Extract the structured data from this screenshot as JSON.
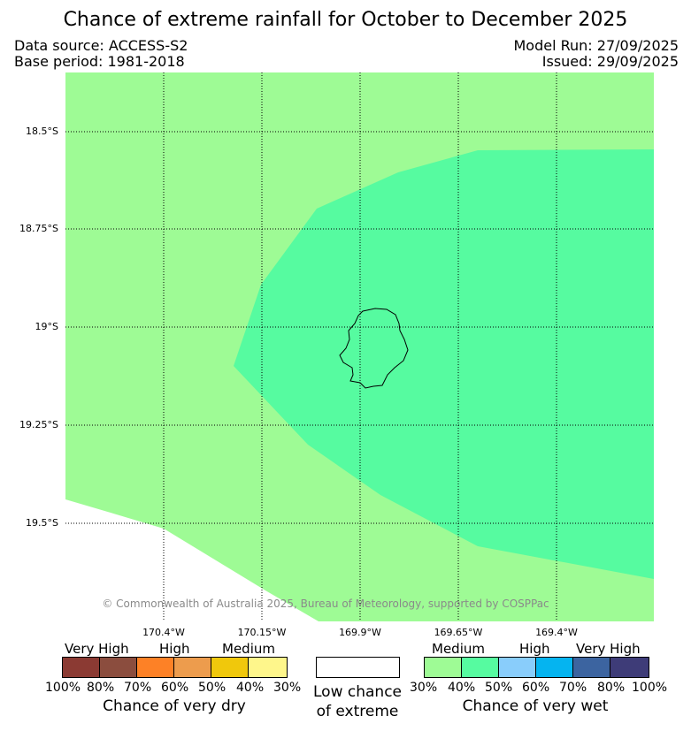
{
  "title": "Chance of extreme rainfall for October to December 2025",
  "header": {
    "data_source": "Data source: ACCESS-S2",
    "base_period": "Base period: 1981-2018",
    "model_run": "Model Run: 27/09/2025",
    "issued": "Issued: 29/09/2025"
  },
  "map": {
    "latitude_labels": [
      "18.5°S",
      "18.75°S",
      "19°S",
      "19.25°S",
      "19.5°S"
    ],
    "longitude_labels": [
      "170.4°W",
      "170.15°W",
      "169.9°W",
      "169.65°W",
      "169.4°W"
    ],
    "copyright": "© Commonwealth of Australia 2025, Bureau of Meteorology, supported by COSPPac",
    "region_colors": {
      "low_chance": "#ffffff",
      "wet_30_40": "#9efb95",
      "wet_40_50": "#56fba0"
    }
  },
  "legend": {
    "dry": {
      "levels": [
        "Very High",
        "High",
        "Medium"
      ],
      "ticks": [
        "100%",
        "80%",
        "70%",
        "60%",
        "50%",
        "40%",
        "30%"
      ],
      "colors": [
        "#8b3a33",
        "#8b4d3e",
        "#fd8126",
        "#ed9c4d",
        "#f0c80c",
        "#fef68b"
      ],
      "caption": "Chance of very dry"
    },
    "neutral": {
      "caption_line1": "Low chance",
      "caption_line2": "of extreme",
      "color": "#ffffff"
    },
    "wet": {
      "levels": [
        "Medium",
        "High",
        "Very High"
      ],
      "ticks": [
        "30%",
        "40%",
        "50%",
        "60%",
        "70%",
        "80%",
        "100%"
      ],
      "colors": [
        "#9efb95",
        "#56fba0",
        "#89cdfb",
        "#05b4f0",
        "#3c64a0",
        "#3e3c78"
      ],
      "caption": "Chance of very wet"
    }
  }
}
